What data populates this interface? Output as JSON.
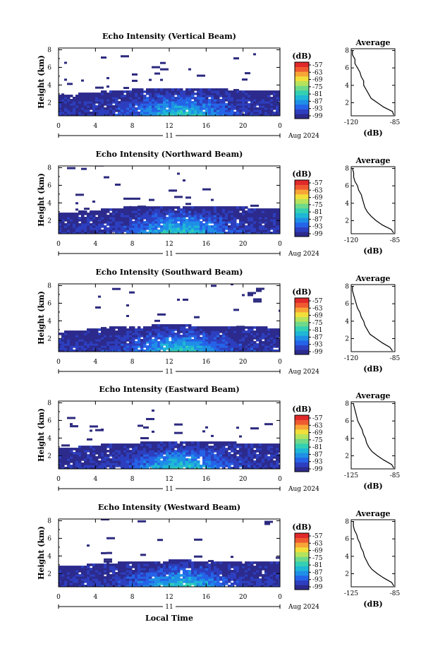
{
  "figure": {
    "x_label": "Local Time",
    "date_label": "Aug 2024",
    "day_label": "11",
    "colorbar_unit": "(dB)",
    "colorbar_ticks": [
      "-57",
      "-63",
      "-69",
      "-75",
      "-81",
      "-87",
      "-93",
      "-99"
    ],
    "colorbar_colors": [
      "#2c2a8c",
      "#2d3fbf",
      "#2563e8",
      "#1f8fe6",
      "#1fb7d6",
      "#34d0b3",
      "#6fd98a",
      "#b6e35c",
      "#f2df3a",
      "#f7a537",
      "#ef5a30",
      "#e0292a"
    ],
    "average_title": "Average",
    "average_xlabel": "(dB)"
  },
  "chart_data": [
    {
      "type": "heatmap",
      "title": "Echo Intensity (Vertical Beam)",
      "ylabel": "Height (km)",
      "x_ticks": [
        "0",
        "4",
        "8",
        "12",
        "16",
        "20",
        "0"
      ],
      "y_ticks": [
        "8",
        "6",
        "4",
        "2"
      ],
      "xlim": [
        0,
        24
      ],
      "ylim": [
        0.5,
        8.2
      ],
      "clim": [
        -99,
        -57
      ],
      "boundary_layer_top_km": [
        2.8,
        2.8,
        2.9,
        3.0,
        3.1,
        3.2,
        3.3,
        3.3,
        3.4,
        3.5,
        3.5,
        3.5,
        3.5,
        3.5,
        3.5,
        3.5,
        3.5,
        3.4,
        3.4,
        3.3,
        3.3,
        3.3,
        3.2,
        3.2,
        3.2
      ],
      "average": {
        "xticks": [
          "-120",
          "-85"
        ],
        "xlim": [
          -120,
          -85
        ],
        "yticks": [
          "8",
          "6",
          "4",
          "2"
        ],
        "height_km": [
          0.6,
          1.0,
          1.5,
          2.0,
          2.5,
          3.0,
          3.5,
          4.0,
          4.5,
          5.0,
          5.5,
          6.0,
          6.5,
          7.0,
          7.5,
          8.0
        ],
        "db": [
          -86,
          -87,
          -94,
          -99,
          -104,
          -106,
          -108,
          -110,
          -110,
          -112,
          -113,
          -115,
          -117,
          -117,
          -119,
          -119
        ]
      }
    },
    {
      "type": "heatmap",
      "title": "Echo Intensity (Northward Beam)",
      "ylabel": "Height (km)",
      "x_ticks": [
        "0",
        "4",
        "8",
        "12",
        "16",
        "20",
        "0"
      ],
      "y_ticks": [
        "8",
        "6",
        "4",
        "2"
      ],
      "xlim": [
        0,
        24
      ],
      "ylim": [
        0.5,
        8.2
      ],
      "clim": [
        -99,
        -57
      ],
      "boundary_layer_top_km": [
        2.7,
        2.8,
        2.9,
        3.0,
        3.1,
        3.2,
        3.3,
        3.4,
        3.4,
        3.5,
        3.5,
        3.6,
        3.6,
        3.6,
        3.5,
        3.5,
        3.5,
        3.5,
        3.5,
        3.4,
        3.4,
        3.3,
        3.3,
        3.3,
        3.3
      ],
      "average": {
        "xticks": [
          "-120",
          "-85"
        ],
        "xlim": [
          -120,
          -85
        ],
        "yticks": [
          "8",
          "6",
          "4",
          "2"
        ],
        "height_km": [
          0.6,
          1.0,
          1.5,
          2.0,
          2.5,
          3.0,
          3.5,
          4.0,
          4.5,
          5.0,
          5.5,
          6.0,
          6.5,
          7.0,
          7.5,
          8.0
        ],
        "db": [
          -86,
          -88,
          -95,
          -100,
          -104,
          -107,
          -109,
          -110,
          -111,
          -112,
          -114,
          -115,
          -117,
          -118,
          -118,
          -119
        ]
      }
    },
    {
      "type": "heatmap",
      "title": "Echo Intensity (Southward Beam)",
      "ylabel": "Height (km)",
      "x_ticks": [
        "0",
        "4",
        "8",
        "12",
        "16",
        "20",
        "0"
      ],
      "y_ticks": [
        "8",
        "6",
        "4",
        "2"
      ],
      "xlim": [
        0,
        24
      ],
      "ylim": [
        0.5,
        8.2
      ],
      "clim": [
        -99,
        -57
      ],
      "boundary_layer_top_km": [
        2.6,
        2.7,
        2.8,
        2.9,
        3.0,
        3.1,
        3.2,
        3.2,
        3.3,
        3.3,
        3.4,
        3.4,
        3.4,
        3.4,
        3.4,
        3.3,
        3.3,
        3.3,
        3.3,
        3.2,
        3.2,
        3.2,
        3.2,
        3.1,
        3.1
      ],
      "average": {
        "xticks": [
          "-120",
          "-85"
        ],
        "xlim": [
          -120,
          -85
        ],
        "yticks": [
          "8",
          "6",
          "4",
          "2"
        ],
        "height_km": [
          0.6,
          1.0,
          1.5,
          2.0,
          2.5,
          3.0,
          3.5,
          4.0,
          4.5,
          5.0,
          5.5,
          6.0,
          6.5,
          7.0,
          7.5,
          8.0
        ],
        "db": [
          -87,
          -89,
          -95,
          -100,
          -105,
          -107,
          -109,
          -110,
          -112,
          -113,
          -115,
          -116,
          -117,
          -118,
          -119,
          -119
        ]
      }
    },
    {
      "type": "heatmap",
      "title": "Echo Intensity (Eastward Beam)",
      "ylabel": "Height (km)",
      "x_ticks": [
        "0",
        "4",
        "8",
        "12",
        "16",
        "20",
        "0"
      ],
      "y_ticks": [
        "8",
        "6",
        "4",
        "2"
      ],
      "xlim": [
        0,
        24
      ],
      "ylim": [
        0.5,
        8.2
      ],
      "clim": [
        -99,
        -57
      ],
      "boundary_layer_top_km": [
        2.8,
        2.8,
        2.9,
        3.0,
        3.1,
        3.2,
        3.2,
        3.3,
        3.3,
        3.4,
        3.4,
        3.4,
        3.5,
        3.5,
        3.5,
        3.5,
        3.4,
        3.4,
        3.4,
        3.4,
        3.3,
        3.3,
        3.3,
        3.3,
        3.3
      ],
      "average": {
        "xticks": [
          "-125",
          "-85"
        ],
        "xlim": [
          -125,
          -85
        ],
        "yticks": [
          "8",
          "6",
          "4",
          "2"
        ],
        "height_km": [
          0.6,
          1.0,
          1.5,
          2.0,
          2.5,
          3.0,
          3.5,
          4.0,
          4.5,
          5.0,
          5.5,
          6.0,
          6.5,
          7.0,
          7.5,
          8.0
        ],
        "db": [
          -86,
          -88,
          -95,
          -101,
          -106,
          -109,
          -111,
          -112,
          -114,
          -115,
          -117,
          -119,
          -120,
          -121,
          -122,
          -123
        ]
      }
    },
    {
      "type": "heatmap",
      "title": "Echo Intensity (Westward Beam)",
      "ylabel": "Height (km)",
      "x_ticks": [
        "0",
        "4",
        "8",
        "12",
        "16",
        "20",
        "0"
      ],
      "y_ticks": [
        "8",
        "6",
        "4",
        "2"
      ],
      "xlim": [
        0,
        24
      ],
      "ylim": [
        0.5,
        8.2
      ],
      "clim": [
        -99,
        -57
      ],
      "boundary_layer_top_km": [
        2.7,
        2.7,
        2.8,
        2.9,
        3.0,
        3.0,
        3.1,
        3.2,
        3.2,
        3.3,
        3.3,
        3.3,
        3.4,
        3.4,
        3.4,
        3.3,
        3.3,
        3.3,
        3.3,
        3.3,
        3.2,
        3.2,
        3.2,
        3.2,
        3.2
      ],
      "average": {
        "xticks": [
          "-125",
          "-85"
        ],
        "xlim": [
          -125,
          -85
        ],
        "yticks": [
          "8",
          "6",
          "4",
          "2"
        ],
        "height_km": [
          0.6,
          1.0,
          1.5,
          2.0,
          2.5,
          3.0,
          3.5,
          4.0,
          4.5,
          5.0,
          5.5,
          6.0,
          6.5,
          7.0,
          7.5,
          8.0
        ],
        "db": [
          -86,
          -88,
          -95,
          -101,
          -106,
          -109,
          -111,
          -113,
          -114,
          -116,
          -117,
          -119,
          -120,
          -122,
          -123,
          -123
        ]
      }
    }
  ]
}
